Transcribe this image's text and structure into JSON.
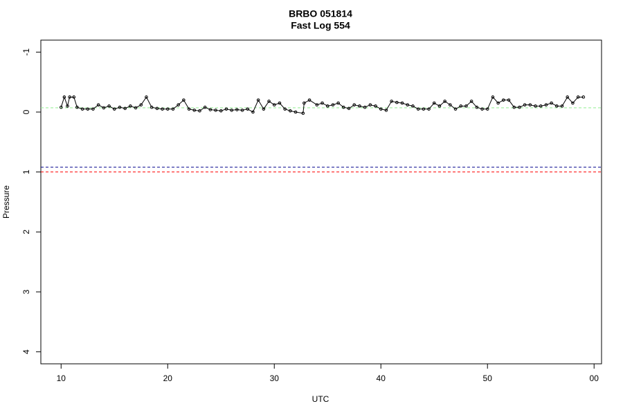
{
  "chart_data": {
    "type": "line",
    "title": "BRBO 051814",
    "subtitle": "Fast Log 554",
    "x_label": "UTC",
    "y_label": "Pressure",
    "xlim": [
      8.1,
      60.7
    ],
    "xticks": [
      10,
      20,
      30,
      40,
      50,
      {
        "value": 60,
        "label": "00"
      }
    ],
    "ylim": [
      4.2,
      -1.2
    ],
    "yticks": [
      -1,
      0,
      1,
      2,
      3,
      4
    ],
    "series": [
      {
        "color": "#000000",
        "x": [
          10.0,
          10.3,
          10.6,
          10.8,
          11.2,
          11.5,
          12.0,
          12.5,
          13.0,
          13.5,
          14.0,
          14.5,
          15.0,
          15.5,
          16.0,
          16.5,
          17.0,
          17.5,
          18.0,
          18.5,
          19.0,
          19.5,
          20.0,
          20.5,
          21.0,
          21.5,
          22.0,
          22.5,
          23.0,
          23.5,
          24.0,
          24.5,
          25.0,
          25.5,
          26.0,
          26.5,
          27.0,
          27.5,
          28.0,
          28.5,
          29.0,
          29.5,
          30.0,
          30.5,
          31.0,
          31.5,
          32.0,
          32.7,
          32.8,
          33.3,
          34.0,
          34.5,
          35.0,
          35.5,
          36.0,
          36.5,
          37.0,
          37.5,
          38.0,
          38.5,
          39.0,
          39.5,
          40.0,
          40.5,
          41.0,
          41.5,
          42.0,
          42.5,
          43.0,
          43.5,
          44.0,
          44.5,
          45.0,
          45.5,
          46.0,
          46.5,
          47.0,
          47.5,
          48.0,
          48.5,
          49.0,
          49.5,
          50.0,
          50.5,
          51.0,
          51.5,
          52.0,
          52.5,
          53.0,
          53.5,
          54.0,
          54.5,
          55.0,
          55.5,
          56.0,
          56.5,
          57.0,
          57.5,
          58.0,
          58.5,
          59.0
        ],
        "values": [
          -0.08,
          -0.25,
          -0.1,
          -0.25,
          -0.25,
          -0.08,
          -0.05,
          -0.05,
          -0.05,
          -0.12,
          -0.07,
          -0.1,
          -0.05,
          -0.08,
          -0.06,
          -0.1,
          -0.07,
          -0.12,
          -0.25,
          -0.08,
          -0.06,
          -0.05,
          -0.05,
          -0.05,
          -0.12,
          -0.2,
          -0.05,
          -0.03,
          -0.02,
          -0.08,
          -0.04,
          -0.03,
          -0.02,
          -0.05,
          -0.03,
          -0.04,
          -0.03,
          -0.05,
          0.0,
          -0.2,
          -0.05,
          -0.18,
          -0.12,
          -0.15,
          -0.05,
          -0.02,
          0.0,
          0.02,
          -0.15,
          -0.2,
          -0.12,
          -0.15,
          -0.1,
          -0.12,
          -0.15,
          -0.08,
          -0.06,
          -0.12,
          -0.1,
          -0.08,
          -0.12,
          -0.1,
          -0.05,
          -0.03,
          -0.18,
          -0.16,
          -0.15,
          -0.12,
          -0.1,
          -0.05,
          -0.05,
          -0.05,
          -0.15,
          -0.1,
          -0.18,
          -0.12,
          -0.05,
          -0.1,
          -0.1,
          -0.18,
          -0.08,
          -0.05,
          -0.05,
          -0.25,
          -0.15,
          -0.2,
          -0.2,
          -0.08,
          -0.08,
          -0.12,
          -0.12,
          -0.1,
          -0.1,
          -0.12,
          -0.15,
          -0.1,
          -0.1,
          -0.25,
          -0.15,
          -0.25,
          -0.25
        ]
      }
    ],
    "reference_lines": [
      {
        "value": -0.07,
        "color": "#90ee90"
      },
      {
        "value": 0.92,
        "color": "#00008b"
      },
      {
        "value": 1.0,
        "color": "#ff0000"
      }
    ]
  }
}
